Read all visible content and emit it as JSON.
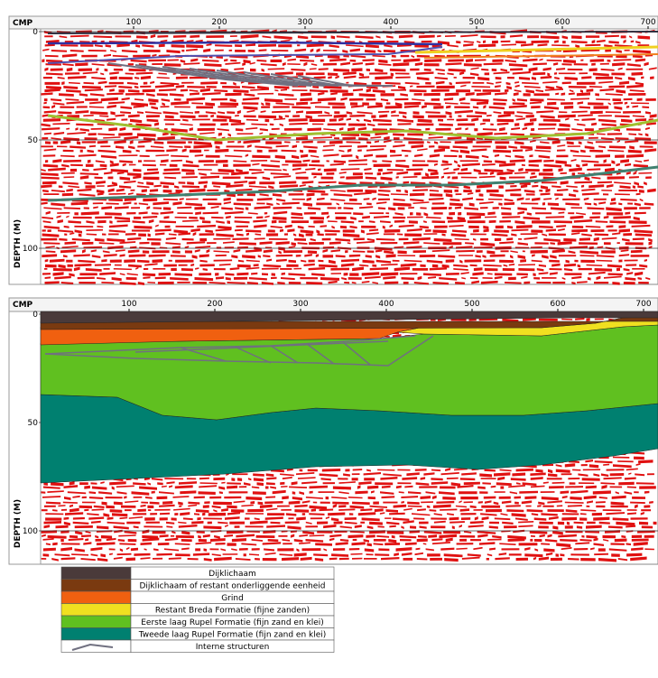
{
  "panels": [
    {
      "axis_title": "CMP",
      "x_ticks": [
        "100",
        "200",
        "300",
        "400",
        "500",
        "600",
        "700"
      ],
      "y_ticks": [
        "0",
        "50",
        "100"
      ],
      "y_title": "DEPTH (M)"
    },
    {
      "axis_title": "CMP",
      "x_ticks": [
        "100",
        "200",
        "300",
        "400",
        "500",
        "600",
        "700"
      ],
      "y_ticks": [
        "0",
        "50",
        "100"
      ],
      "y_title": "DEPTH (M)"
    }
  ],
  "legend": [
    {
      "label": "Dijklichaam"
    },
    {
      "label": "Dijklichaam of restant onderliggende eenheid"
    },
    {
      "label": "Grind"
    },
    {
      "label": "Restant Breda Formatie (fijne zanden)"
    },
    {
      "label": "Eerste laag Rupel Formatie (fijn zand en klei)"
    },
    {
      "label": "Tweede laag Rupel Formatie (fijn zand en klei)"
    },
    {
      "label": "Interne structuren"
    }
  ]
}
